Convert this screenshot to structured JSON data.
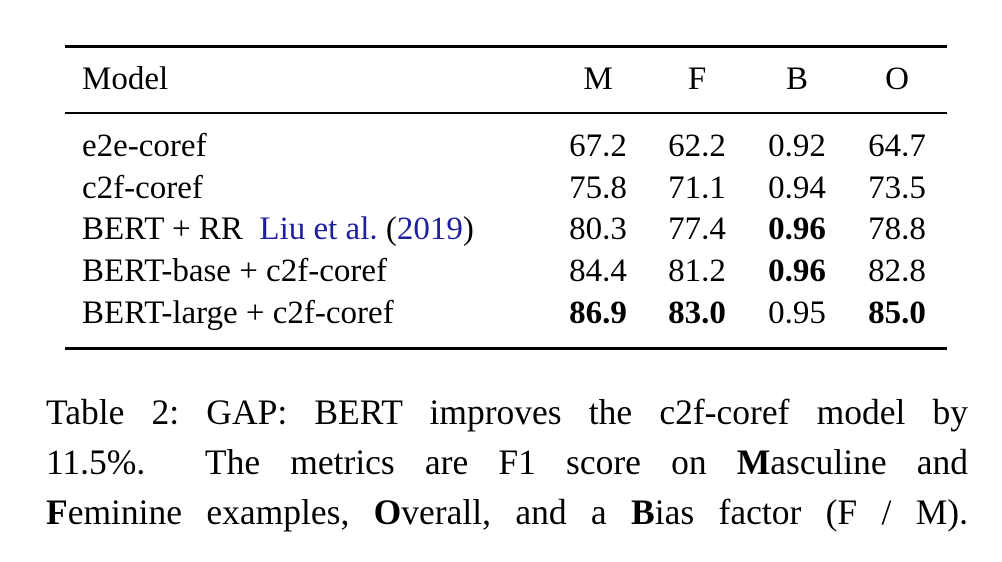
{
  "table": {
    "headers": [
      "Model",
      "M",
      "F",
      "B",
      "O"
    ],
    "rows": [
      {
        "model": "e2e-coref",
        "values": [
          "67.2",
          "62.2",
          "0.92",
          "64.7"
        ],
        "bold": [
          false,
          false,
          false,
          false
        ]
      },
      {
        "model": "c2f-coref",
        "values": [
          "75.8",
          "71.1",
          "0.94",
          "73.5"
        ],
        "bold": [
          false,
          false,
          false,
          false
        ]
      },
      {
        "model": "BERT + RR",
        "citation": {
          "authors": "Liu et al.",
          "open": " (",
          "year": "2019",
          "close": ")"
        },
        "values": [
          "80.3",
          "77.4",
          "0.96",
          "78.8"
        ],
        "bold": [
          false,
          false,
          true,
          false
        ]
      },
      {
        "model": "BERT-base + c2f-coref",
        "values": [
          "84.4",
          "81.2",
          "0.96",
          "82.8"
        ],
        "bold": [
          false,
          false,
          true,
          false
        ]
      },
      {
        "model": "BERT-large + c2f-coref",
        "values": [
          "86.9",
          "83.0",
          "0.95",
          "85.0"
        ],
        "bold": [
          true,
          true,
          false,
          true
        ]
      }
    ]
  },
  "caption": {
    "line1": "Table 2: GAP: BERT improves the c2f-coref model by",
    "line2a": "11.5%.  The metrics are F1 score on ",
    "line2b": "M",
    "line2c": "asculine and",
    "line3a": "F",
    "line3b": "eminine examples, ",
    "line3c": "O",
    "line3d": "verall, and a ",
    "line3e": "B",
    "line3f": "ias factor (F / M)."
  },
  "colors": {
    "citation": "#1f1f9e"
  }
}
